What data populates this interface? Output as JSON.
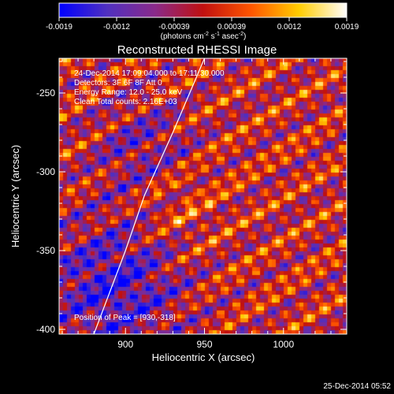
{
  "chart_data": {
    "type": "heatmap",
    "title": "Reconstructed RHESSI Image",
    "xlabel": "Heliocentric X (arcsec)",
    "ylabel": "Heliocentric Y (arcsec)",
    "xlim": [
      858,
      1040
    ],
    "ylim": [
      -403,
      -228
    ],
    "x_ticks": [
      900,
      950,
      1000
    ],
    "y_ticks": [
      -250,
      -300,
      -350,
      -400
    ],
    "colorbar": {
      "ticks": [
        "-0.0019",
        "-0.0012",
        "-0.00039",
        "0.00039",
        "0.0012",
        "0.0019"
      ],
      "range": [
        -0.0019,
        0.0019
      ],
      "label_parts": [
        "(photons cm",
        "-2",
        " s",
        "-1",
        " asec",
        "-2",
        ")"
      ],
      "colors": [
        "#0000ff",
        "#5030c0",
        "#8a2a8a",
        "#c01010",
        "#ff5500",
        "#ffcc00",
        "#ffffff"
      ]
    },
    "info_lines": [
      "24-Dec-2014 17:09:04.000 to 17:11:30.000",
      "Detectors: 3F 6F 8F  Att 0",
      "Energy Range: 12.0 - 25.0 keV",
      "Clean    Total counts: 2.16E+03"
    ],
    "annotation": "Position of Peak = [930,-318]",
    "peak": [
      930,
      -318
    ],
    "limb_curve_points": [
      [
        880,
        -403
      ],
      [
        900,
        -350
      ],
      [
        912,
        -315
      ],
      [
        930,
        -275
      ],
      [
        950,
        -228
      ]
    ],
    "timestamp": "25-Dec-2014 05:52"
  }
}
